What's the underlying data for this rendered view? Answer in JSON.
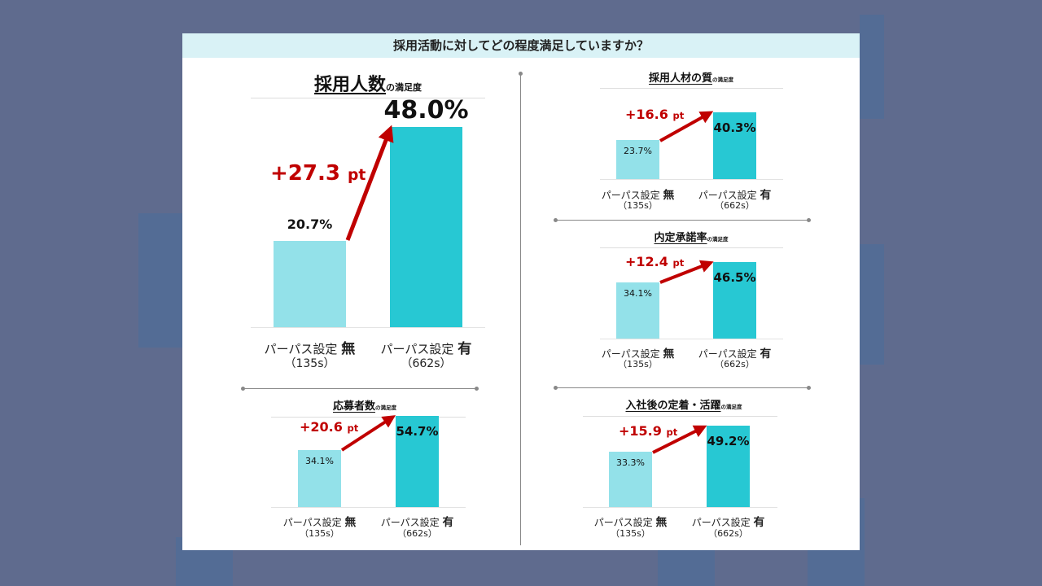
{
  "header": {
    "question": "採用活動に対してどの程度満足していますか？"
  },
  "colors": {
    "without": "#93e1e9",
    "with": "#27c8d3",
    "delta": "#c00000",
    "header_bg": "#d9f2f6"
  },
  "chart_data": [
    {
      "type": "bar",
      "title": "採用人数",
      "title_suffix": "の満足度",
      "categories": [
        "パーパス設定 無",
        "パーパス設定 有"
      ],
      "category_prefix": "パーパス設定 ",
      "category_marks": [
        "無",
        "有"
      ],
      "samples": [
        "（135s）",
        "（662s）"
      ],
      "values": [
        20.7,
        48.0
      ],
      "value_labels": [
        "20.7%",
        "48.0%"
      ],
      "delta_label": "+27.3",
      "delta_unit": "pt",
      "ylabel": "",
      "xlabel": ""
    },
    {
      "type": "bar",
      "title": "採用人材の質",
      "title_suffix": "の満足度",
      "categories": [
        "パーパス設定 無",
        "パーパス設定 有"
      ],
      "category_prefix": "パーパス設定 ",
      "category_marks": [
        "無",
        "有"
      ],
      "samples": [
        "（135s）",
        "（662s）"
      ],
      "values": [
        23.7,
        40.3
      ],
      "value_labels": [
        "23.7%",
        "40.3%"
      ],
      "delta_label": "+16.6",
      "delta_unit": "pt"
    },
    {
      "type": "bar",
      "title": "内定承諾率",
      "title_suffix": "の満足度",
      "categories": [
        "パーパス設定 無",
        "パーパス設定 有"
      ],
      "category_prefix": "パーパス設定 ",
      "category_marks": [
        "無",
        "有"
      ],
      "samples": [
        "（135s）",
        "（662s）"
      ],
      "values": [
        34.1,
        46.5
      ],
      "value_labels": [
        "34.1%",
        "46.5%"
      ],
      "delta_label": "+12.4",
      "delta_unit": "pt"
    },
    {
      "type": "bar",
      "title": "応募者数",
      "title_suffix": "の満足度",
      "categories": [
        "パーパス設定 無",
        "パーパス設定 有"
      ],
      "category_prefix": "パーパス設定 ",
      "category_marks": [
        "無",
        "有"
      ],
      "samples": [
        "（135s）",
        "（662s）"
      ],
      "values": [
        34.1,
        54.7
      ],
      "value_labels": [
        "34.1%",
        "54.7%"
      ],
      "delta_label": "+20.6",
      "delta_unit": "pt"
    },
    {
      "type": "bar",
      "title": "入社後の定着・活躍",
      "title_suffix": "の満足度",
      "categories": [
        "パーパス設定 無",
        "パーパス設定 有"
      ],
      "category_prefix": "パーパス設定 ",
      "category_marks": [
        "無",
        "有"
      ],
      "samples": [
        "（135s）",
        "（662s）"
      ],
      "values": [
        33.3,
        49.2
      ],
      "value_labels": [
        "33.3%",
        "49.2%"
      ],
      "delta_label": "+15.9",
      "delta_unit": "pt"
    }
  ]
}
